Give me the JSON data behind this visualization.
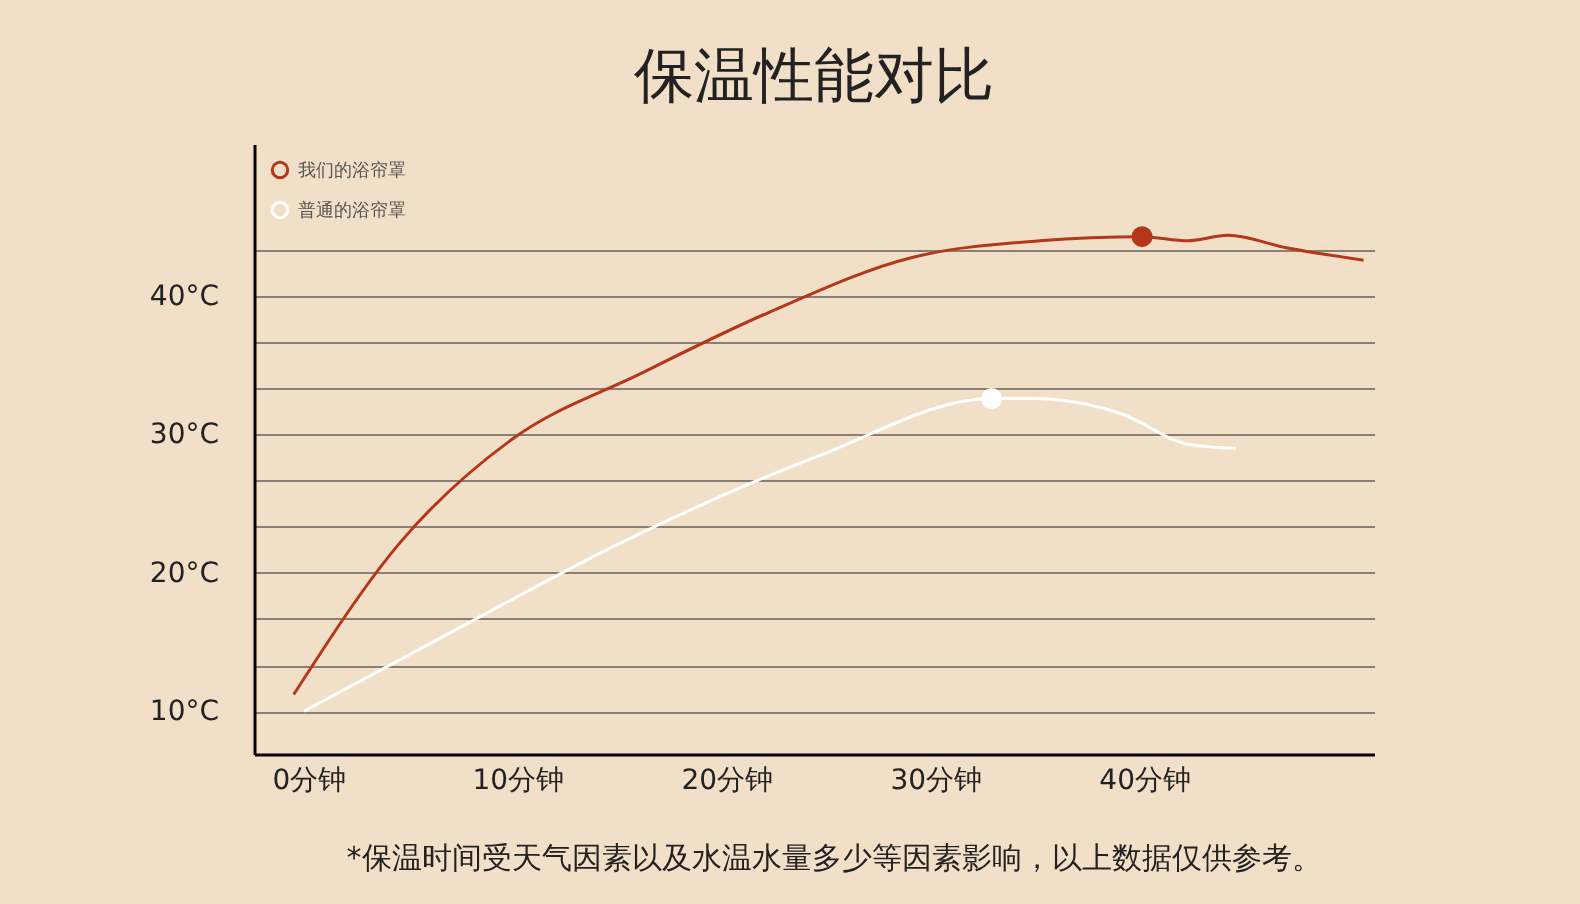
{
  "chart_data": {
    "type": "line",
    "title": "保温性能对比",
    "xlim": [
      -2.6,
      51
    ],
    "ylim": [
      6.9,
      51
    ],
    "xticks": [
      {
        "value": 0,
        "label": "0分钟"
      },
      {
        "value": 10,
        "label": "10分钟"
      },
      {
        "value": 20,
        "label": "20分钟"
      },
      {
        "value": 30,
        "label": "30分钟"
      },
      {
        "value": 40,
        "label": "40分钟"
      }
    ],
    "yticks": [
      {
        "value": 10,
        "label": "10°C"
      },
      {
        "value": 13.33,
        "label": null
      },
      {
        "value": 16.67,
        "label": null
      },
      {
        "value": 20,
        "label": "20°C"
      },
      {
        "value": 23.33,
        "label": null
      },
      {
        "value": 26.67,
        "label": null
      },
      {
        "value": 30,
        "label": "30°C"
      },
      {
        "value": 33.33,
        "label": null
      },
      {
        "value": 36.67,
        "label": null
      },
      {
        "value": 40,
        "label": "40°C"
      },
      {
        "value": 43.33,
        "label": null
      }
    ],
    "grid": "y",
    "legend": "top left",
    "series": [
      {
        "name": "我们的浴帘罩",
        "color": "#b5371a",
        "x": [
          -0.7,
          4.4,
          9.7,
          15.9,
          22,
          28.9,
          35,
          39.9,
          42.1,
          44,
          46.8,
          50.5
        ],
        "values": [
          11.2,
          22.2,
          29.6,
          34.4,
          38.8,
          42.8,
          44,
          44.3,
          44,
          44.4,
          43.5,
          42.6
        ]
      },
      {
        "name": "普通的浴帘罩",
        "color": "#ffffff",
        "x": [
          -0.2,
          7.2,
          15,
          24.5,
          32.7,
          34.7,
          38.9,
          42.1,
          44.4
        ],
        "values": [
          10,
          16,
          22.2,
          28.5,
          32.6,
          32.6,
          31.5,
          29.3,
          29
        ]
      },
      {
        "type": "scatter",
        "color": "#b5371a",
        "x": [
          39.9
        ],
        "values": [
          44.3
        ]
      },
      {
        "type": "scatter",
        "color": "#ffffff",
        "x": [
          32.7
        ],
        "values": [
          32.6
        ]
      }
    ],
    "annotations": [
      "*保温时间受天气因素以及水温水量多少等因素影响，以上数据仅供参考。"
    ]
  }
}
